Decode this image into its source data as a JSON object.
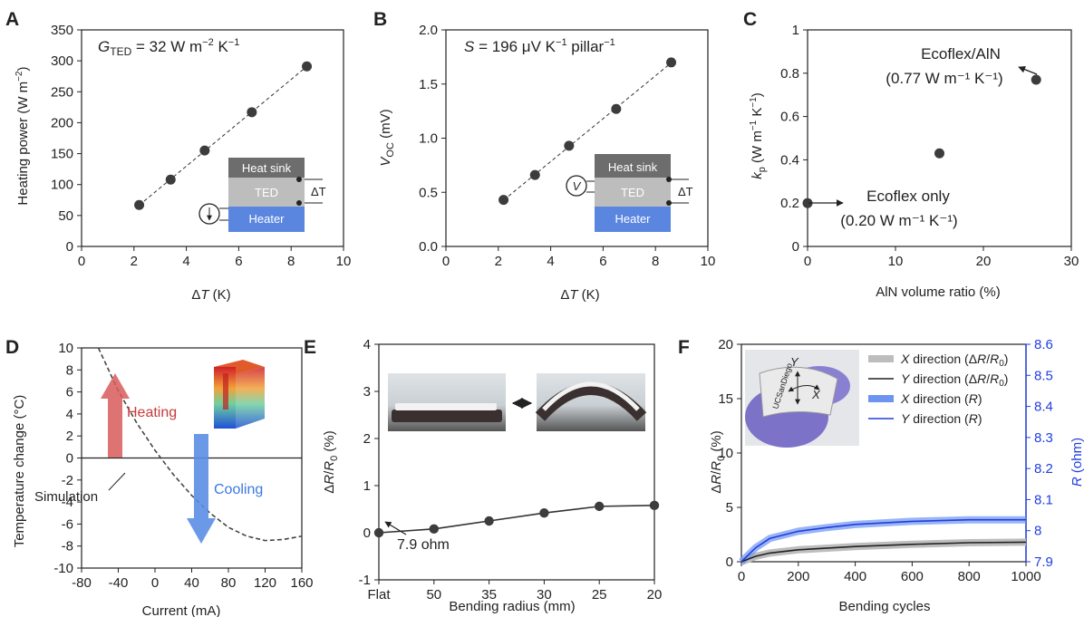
{
  "panels": {
    "A": {
      "letter": "A",
      "annotation_main": "G",
      "annotation_sub": "TED",
      "annotation_rest": " = 32 W m",
      "annotation_exp1": "−2",
      "annotation_mid": " K",
      "annotation_exp2": "−1",
      "ylabel": "Heating power (W m",
      "ylabel_exp": "−2",
      "ylabel_end": ")",
      "xlabel_delta": "Δ",
      "xlabel_var": "T",
      "xlabel_unit": " (K)",
      "inset": {
        "top": "Heat sink",
        "mid": "TED",
        "bottom": "Heater",
        "delta": "ΔT"
      }
    },
    "B": {
      "letter": "B",
      "annotation_var": "S",
      "annotation_rest": " = 196 μV K",
      "annotation_exp": "−1",
      "annotation_end": " pillar",
      "annotation_exp2": "−1",
      "ylabel_var": "V",
      "ylabel_sub": "OC",
      "ylabel_unit": " (mV)",
      "xlabel_delta": "Δ",
      "xlabel_var": "T",
      "xlabel_unit": " (K)",
      "inset": {
        "top": "Heat sink",
        "mid": "TED",
        "bottom": "Heater",
        "delta": "ΔT",
        "meter": "V"
      }
    },
    "C": {
      "letter": "C",
      "ylabel_var": "k",
      "ylabel_sub": "p",
      "ylabel_unit": " (W m",
      "ylabel_exp": "−1",
      "ylabel_mid": " K",
      "ylabel_exp2": "−1",
      "ylabel_end": ")",
      "xlabel": "AlN volume ratio (%)",
      "ann1_line1": "Ecoflex/AlN",
      "ann1_line2": "(0.77 W m⁻¹ K⁻¹)",
      "ann2_line1": "Ecoflex only",
      "ann2_line2": "(0.20 W m⁻¹ K⁻¹)"
    },
    "D": {
      "letter": "D",
      "ylabel": "Temperature change (°C)",
      "xlabel": "Current (mA)",
      "heating": "Heating",
      "cooling": "Cooling",
      "sim": "Simulation"
    },
    "E": {
      "letter": "E",
      "ylabel_delta": "Δ",
      "ylabel_var": "R",
      "ylabel_slash": "/",
      "ylabel_var2": "R",
      "ylabel_sub": "0",
      "ylabel_unit": " (%)",
      "xlabel": "Bending radius (mm)",
      "annotation": "7.9 ohm"
    },
    "F": {
      "letter": "F",
      "ylabel_delta": "Δ",
      "ylabel_var": "R",
      "ylabel_slash": "/",
      "ylabel_var2": "R",
      "ylabel_sub": "0",
      "ylabel_unit": " (%)",
      "y2label_var": "R",
      "y2label_unit": " (ohm)",
      "xlabel": "Bending cycles",
      "photo_text": "UCSanDiego",
      "photo_x": "X",
      "photo_y": "Y"
    }
  },
  "colors": {
    "marker": "#3c3c3c",
    "heating": "#d85a5a",
    "cooling": "#5b8ee6",
    "blue": "#1f3ee0",
    "blue_band": "#6d94f0",
    "gray_band": "#bdbdbd"
  },
  "chart_data": [
    {
      "panel": "A",
      "type": "scatter",
      "x": [
        2.2,
        3.4,
        4.7,
        6.5,
        8.6
      ],
      "y": [
        67,
        108,
        155,
        217,
        291
      ],
      "fit": "linear",
      "xlim": [
        0,
        10
      ],
      "ylim": [
        0,
        350
      ],
      "xticks": [
        0,
        2,
        4,
        6,
        8,
        10
      ],
      "yticks": [
        0,
        50,
        100,
        150,
        200,
        250,
        300,
        350
      ]
    },
    {
      "panel": "B",
      "type": "scatter",
      "x": [
        2.2,
        3.4,
        4.7,
        6.5,
        8.6
      ],
      "y": [
        0.43,
        0.66,
        0.93,
        1.27,
        1.7
      ],
      "fit": "linear",
      "xlim": [
        0,
        10
      ],
      "ylim": [
        0,
        2.0
      ],
      "xticks": [
        0,
        2,
        4,
        6,
        8,
        10
      ],
      "yticks": [
        "0.0",
        "0.5",
        "1.0",
        "1.5",
        "2.0"
      ]
    },
    {
      "panel": "C",
      "type": "scatter",
      "x": [
        0,
        15,
        26
      ],
      "y": [
        0.2,
        0.43,
        0.77
      ],
      "xlim": [
        0,
        30
      ],
      "ylim": [
        0,
        1
      ],
      "xticks": [
        0,
        10,
        20,
        30
      ],
      "yticks": [
        "0",
        "0.2",
        "0.4",
        "0.6",
        "0.8",
        "1"
      ]
    },
    {
      "panel": "D",
      "type": "line",
      "x": [
        -80,
        -60,
        -40,
        -20,
        0,
        20,
        40,
        60,
        80,
        100,
        120,
        140,
        160
      ],
      "y": [
        13.5,
        9.7,
        6.1,
        3.2,
        0.7,
        -1.5,
        -3.4,
        -5.0,
        -6.3,
        -7.1,
        -7.5,
        -7.4,
        -7.1
      ],
      "xlim": [
        -80,
        160
      ],
      "ylim": [
        -10,
        10
      ],
      "xticks": [
        -80,
        -40,
        0,
        40,
        80,
        120,
        160
      ],
      "yticks": [
        -10,
        -8,
        -6,
        -4,
        -2,
        0,
        2,
        4,
        6,
        8,
        10
      ]
    },
    {
      "panel": "E",
      "type": "line",
      "categories": [
        "Flat",
        "50",
        "35",
        "30",
        "25",
        "20"
      ],
      "values": [
        0,
        0.08,
        0.25,
        0.42,
        0.56,
        0.58
      ],
      "ylim": [
        -1,
        4
      ],
      "yticks": [
        -1,
        0,
        1,
        2,
        3,
        4
      ]
    },
    {
      "panel": "F",
      "type": "line",
      "xlim": [
        0,
        1000
      ],
      "ylim": [
        0,
        20
      ],
      "y2lim": [
        7.9,
        8.6
      ],
      "xticks": [
        0,
        200,
        400,
        600,
        800,
        1000
      ],
      "yticks": [
        0,
        5,
        10,
        15,
        20
      ],
      "y2ticks": [
        "7.9",
        "8",
        "8.1",
        "8.2",
        "8.3",
        "8.4",
        "8.5",
        "8.6"
      ],
      "series": [
        {
          "name": "X direction (ΔR/R0)",
          "axis": "left",
          "style": "band",
          "x": [
            0,
            50,
            100,
            200,
            400,
            600,
            800,
            1000
          ],
          "y": [
            0,
            0.5,
            0.8,
            1.1,
            1.4,
            1.6,
            1.75,
            1.8
          ]
        },
        {
          "name": "Y direction (ΔR/R0)",
          "axis": "left",
          "style": "line",
          "x": [
            0,
            50,
            100,
            200,
            400,
            600,
            800,
            1000
          ],
          "y": [
            0,
            0.5,
            0.8,
            1.1,
            1.4,
            1.6,
            1.75,
            1.8
          ]
        },
        {
          "name": "X direction (R)",
          "axis": "right",
          "style": "band",
          "x": [
            0,
            50,
            100,
            200,
            300,
            400,
            600,
            800,
            1000
          ],
          "y": [
            7.9,
            7.945,
            7.975,
            7.998,
            8.01,
            8.02,
            8.03,
            8.035,
            8.035
          ]
        },
        {
          "name": "Y direction (R)",
          "axis": "right",
          "style": "line",
          "x": [
            0,
            50,
            100,
            200,
            300,
            400,
            600,
            800,
            1000
          ],
          "y": [
            7.9,
            7.945,
            7.975,
            7.998,
            8.01,
            8.02,
            8.03,
            8.035,
            8.035
          ]
        }
      ],
      "legend": [
        {
          "pre": "",
          "var": "X",
          "rest": " direction (Δ",
          "var2": "R",
          "slash": "/",
          "var3": "R",
          "sub": "0",
          "end": ")"
        },
        {
          "pre": "",
          "var": "Y",
          "rest": " direction (Δ",
          "var2": "R",
          "slash": "/",
          "var3": "R",
          "sub": "0",
          "end": ")"
        },
        {
          "pre": "",
          "var": "X",
          "rest": " direction (",
          "var2": "R",
          "end": ")"
        },
        {
          "pre": "",
          "var": "Y",
          "rest": " direction (",
          "var2": "R",
          "end": ")"
        }
      ]
    }
  ]
}
